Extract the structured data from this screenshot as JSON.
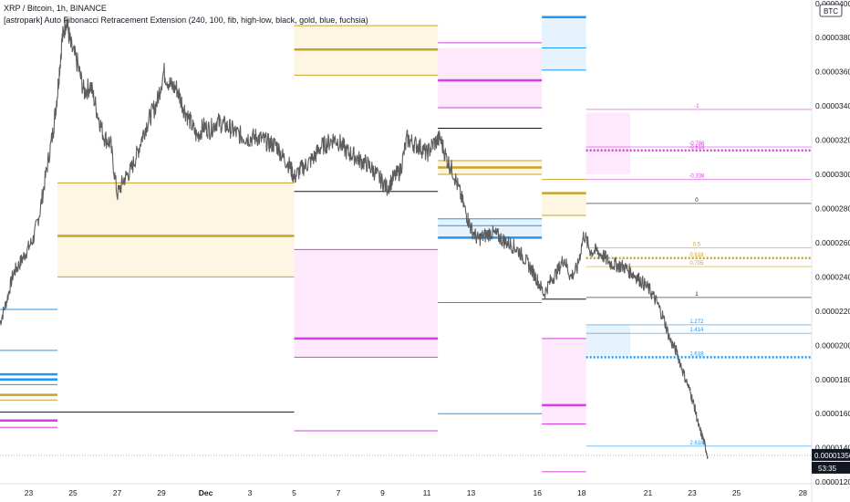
{
  "header": {
    "title": "XRP / Bitcoin, 1h, BINANCE",
    "indicator": "[astropark] Auto Fibonacci Retracement Extension (240, 100, fib, high-low, black, gold, blue, fuchsia)"
  },
  "colors": {
    "price": "#5d5d5d",
    "black": "#131722",
    "gold": "#c9a227",
    "blue": "#2196f3",
    "fuchsia": "#d63fe0",
    "gold_fill": "#fdf6e3",
    "blue_fill": "#e6f3fd",
    "fuchsia_fill": "#fde9fb"
  },
  "chart_data": {
    "type": "line",
    "symbol": "XRP / Bitcoin",
    "interval": "1h",
    "exchange": "BINANCE",
    "currency_badge": "BTC",
    "ylim": [
      1.19e-05,
      4.02e-05
    ],
    "y_ticks": [
      {
        "value": 1.2e-05,
        "label": "0.00001200"
      },
      {
        "value": 1.4e-05,
        "label": "0.00001400"
      },
      {
        "value": 1.6e-05,
        "label": "0.00001600"
      },
      {
        "value": 1.8e-05,
        "label": "0.00001800"
      },
      {
        "value": 2e-05,
        "label": "0.00002000"
      },
      {
        "value": 2.2e-05,
        "label": "0.00002200"
      },
      {
        "value": 2.4e-05,
        "label": "0.00002400"
      },
      {
        "value": 2.6e-05,
        "label": "0.00002600"
      },
      {
        "value": 2.8e-05,
        "label": "0.00002800"
      },
      {
        "value": 3e-05,
        "label": "0.00003000"
      },
      {
        "value": 3.2e-05,
        "label": "0.00003200"
      },
      {
        "value": 3.4e-05,
        "label": "0.00003400"
      },
      {
        "value": 3.6e-05,
        "label": "0.00003600"
      },
      {
        "value": 3.8e-05,
        "label": "0.00003800"
      },
      {
        "value": 4e-05,
        "label": "0.00004000"
      }
    ],
    "x_ticks": [
      {
        "day": 23,
        "label": "23"
      },
      {
        "day": 25,
        "label": "25"
      },
      {
        "day": 27,
        "label": "27"
      },
      {
        "day": 29,
        "label": "29"
      },
      {
        "day": 31,
        "label": "Dec",
        "bold": true
      },
      {
        "day": 33,
        "label": "3"
      },
      {
        "day": 35,
        "label": "5"
      },
      {
        "day": 37,
        "label": "7"
      },
      {
        "day": 39,
        "label": "9"
      },
      {
        "day": 41,
        "label": "11"
      },
      {
        "day": 43,
        "label": "13"
      },
      {
        "day": 46,
        "label": "16"
      },
      {
        "day": 48,
        "label": "18"
      },
      {
        "day": 51,
        "label": "21"
      },
      {
        "day": 53,
        "label": "23"
      },
      {
        "day": 55,
        "label": "25"
      },
      {
        "day": 58,
        "label": "28"
      }
    ],
    "xlim": [
      21.7,
      58.4
    ],
    "price_series": {
      "name": "XRP / Bitcoin",
      "x": [
        21.7,
        22.0,
        22.3,
        22.6,
        22.9,
        23.2,
        23.5,
        23.8,
        24.1,
        24.3,
        24.5,
        24.7,
        24.9,
        25.2,
        25.5,
        25.8,
        26.1,
        26.4,
        26.7,
        27.0,
        27.3,
        27.6,
        27.9,
        28.2,
        28.5,
        28.8,
        29.1,
        29.4,
        29.7,
        30.0,
        30.3,
        30.6,
        30.9,
        31.2,
        31.5,
        31.8,
        32.1,
        32.4,
        32.7,
        33.0,
        33.3,
        33.6,
        33.9,
        34.2,
        34.5,
        34.8,
        35.0,
        35.3,
        35.6,
        35.9,
        36.2,
        36.5,
        36.8,
        37.1,
        37.4,
        37.7,
        38.0,
        38.3,
        38.6,
        38.9,
        39.2,
        39.5,
        39.8,
        40.1,
        40.4,
        40.7,
        41.0,
        41.3,
        41.6,
        41.9,
        42.2,
        42.5,
        42.8,
        43.0,
        43.3,
        43.6,
        43.9,
        44.2,
        44.5,
        44.8,
        45.1,
        45.4,
        45.7,
        46.0,
        46.3,
        46.6,
        46.9,
        47.2,
        47.5,
        47.8,
        48.1,
        48.4,
        48.7,
        49.0,
        49.3,
        49.6,
        49.9,
        50.2,
        50.5,
        50.8,
        51.1,
        51.4,
        51.7,
        52.0,
        52.3,
        52.6,
        52.9,
        53.1,
        53.3,
        53.5,
        53.7
      ],
      "y": [
        2.13e-05,
        2.26e-05,
        2.42e-05,
        2.48e-05,
        2.55e-05,
        2.62e-05,
        2.78e-05,
        3.02e-05,
        3.25e-05,
        3.48e-05,
        3.78e-05,
        3.91e-05,
        3.75e-05,
        3.65e-05,
        3.48e-05,
        3.52e-05,
        3.36e-05,
        3.22e-05,
        3.18e-05,
        2.88e-05,
        2.97e-05,
        3.02e-05,
        3.12e-05,
        3.25e-05,
        3.34e-05,
        3.42e-05,
        3.6e-05,
        3.52e-05,
        3.5e-05,
        3.39e-05,
        3.31e-05,
        3.22e-05,
        3.28e-05,
        3.26e-05,
        3.31e-05,
        3.29e-05,
        3.27e-05,
        3.24e-05,
        3.22e-05,
        3.21e-05,
        3.22e-05,
        3.2e-05,
        3.18e-05,
        3.17e-05,
        3.1e-05,
        3.05e-05,
        2.98e-05,
        3.03e-05,
        3.06e-05,
        3.1e-05,
        3.16e-05,
        3.18e-05,
        3.21e-05,
        3.18e-05,
        3.13e-05,
        3.11e-05,
        3.08e-05,
        3.06e-05,
        3.02e-05,
        2.97e-05,
        2.92e-05,
        2.98e-05,
        3.02e-05,
        3.21e-05,
        3.18e-05,
        3.16e-05,
        3.12e-05,
        3.18e-05,
        3.21e-05,
        3.09e-05,
        3.01e-05,
        2.89e-05,
        2.76e-05,
        2.68e-05,
        2.62e-05,
        2.64e-05,
        2.66e-05,
        2.64e-05,
        2.61e-05,
        2.59e-05,
        2.56e-05,
        2.51e-05,
        2.45e-05,
        2.38e-05,
        2.3e-05,
        2.38e-05,
        2.43e-05,
        2.51e-05,
        2.4e-05,
        2.45e-05,
        2.65e-05,
        2.55e-05,
        2.55e-05,
        2.52e-05,
        2.48e-05,
        2.47e-05,
        2.46e-05,
        2.43e-05,
        2.4e-05,
        2.36e-05,
        2.32e-05,
        2.25e-05,
        2.16e-05,
        2.03e-05,
        1.96e-05,
        1.84e-05,
        1.73e-05,
        1.64e-05,
        1.52e-05,
        1.45e-05,
        1.35e-05
      ]
    },
    "fib_blocks": [
      {
        "x0": 21.7,
        "x1": 24.3,
        "fill": "blue",
        "lines": [
          {
            "v": 2.21e-05,
            "c": "blue",
            "w": 1
          },
          {
            "v": 1.97e-05,
            "c": "blue",
            "w": 1
          },
          {
            "v": 1.83e-05,
            "c": "blue",
            "w": 2.5
          },
          {
            "v": 1.8e-05,
            "c": "blue",
            "w": 2.5
          },
          {
            "v": 1.77e-05,
            "c": "blue",
            "w": 1
          },
          {
            "v": 1.71e-05,
            "c": "gold",
            "w": 2.5
          },
          {
            "v": 1.68e-05,
            "c": "gold",
            "w": 1
          },
          {
            "v": 1.56e-05,
            "c": "fuchsia",
            "w": 2.5
          },
          {
            "v": 1.52e-05,
            "c": "fuchsia",
            "w": 1
          }
        ],
        "fills": []
      },
      {
        "x0": 21.7,
        "x1": 35.0,
        "lines": [
          {
            "v": 1.61e-05,
            "c": "black",
            "w": 1
          }
        ],
        "fills": []
      },
      {
        "x0": 24.3,
        "x1": 35.0,
        "lines": [
          {
            "v": 2.95e-05,
            "c": "gold",
            "w": 1
          },
          {
            "v": 2.64e-05,
            "c": "gold",
            "w": 2.5
          },
          {
            "v": 2.4e-05,
            "c": "gold",
            "w": 1
          }
        ],
        "fills": [
          {
            "v0": 2.95e-05,
            "v1": 2.4e-05,
            "c": "gold"
          }
        ]
      },
      {
        "x0": 35.0,
        "x1": 41.5,
        "lines": [
          {
            "v": 3.87e-05,
            "c": "gold",
            "w": 1
          },
          {
            "v": 3.73e-05,
            "c": "gold",
            "w": 2.5
          },
          {
            "v": 3.58e-05,
            "c": "gold",
            "w": 1
          },
          {
            "v": 2.9e-05,
            "c": "black",
            "w": 1
          },
          {
            "v": 2.56e-05,
            "c": "fuchsia",
            "w": 1
          },
          {
            "v": 2.04e-05,
            "c": "fuchsia",
            "w": 2.5
          },
          {
            "v": 1.93e-05,
            "c": "fuchsia",
            "w": 1
          },
          {
            "v": 1.5e-05,
            "c": "fuchsia",
            "w": 1
          }
        ],
        "fills": [
          {
            "v0": 3.87e-05,
            "v1": 3.58e-05,
            "c": "gold"
          },
          {
            "v0": 2.56e-05,
            "v1": 1.93e-05,
            "c": "fuchsia"
          }
        ]
      },
      {
        "x0": 41.5,
        "x1": 46.2,
        "lines": [
          {
            "v": 3.77e-05,
            "c": "fuchsia",
            "w": 1
          },
          {
            "v": 3.55e-05,
            "c": "fuchsia",
            "w": 2.5
          },
          {
            "v": 3.39e-05,
            "c": "fuchsia",
            "w": 1
          },
          {
            "v": 3.27e-05,
            "c": "black",
            "w": 1
          },
          {
            "v": 3.08e-05,
            "c": "gold",
            "w": 1
          },
          {
            "v": 3.04e-05,
            "c": "gold",
            "w": 2.5
          },
          {
            "v": 3e-05,
            "c": "gold",
            "w": 1
          },
          {
            "v": 2.74e-05,
            "c": "blue",
            "w": 1
          },
          {
            "v": 2.7e-05,
            "c": "blue",
            "w": 1
          },
          {
            "v": 2.63e-05,
            "c": "blue",
            "w": 2.5
          },
          {
            "v": 2.25e-05,
            "c": "blue",
            "w": 1
          },
          {
            "v": 1.6e-05,
            "c": "blue",
            "w": 1
          }
        ],
        "fills": [
          {
            "v0": 3.74e-05,
            "v1": 3.39e-05,
            "c": "fuchsia"
          },
          {
            "v0": 3.08e-05,
            "v1": 3e-05,
            "c": "gold"
          },
          {
            "v0": 2.74e-05,
            "v1": 2.63e-05,
            "c": "blue"
          }
        ]
      },
      {
        "x0": 46.2,
        "x1": 48.2,
        "lines": [
          {
            "v": 3.92e-05,
            "c": "blue",
            "w": 2.5
          },
          {
            "v": 3.74e-05,
            "c": "blue",
            "w": 1
          },
          {
            "v": 3.61e-05,
            "c": "blue",
            "w": 1
          },
          {
            "v": 2.97e-05,
            "c": "gold",
            "w": 1
          },
          {
            "v": 2.89e-05,
            "c": "gold",
            "w": 2.5
          },
          {
            "v": 2.76e-05,
            "c": "gold",
            "w": 1
          },
          {
            "v": 2.27e-05,
            "c": "black",
            "w": 1
          },
          {
            "v": 2.04e-05,
            "c": "fuchsia",
            "w": 1
          },
          {
            "v": 1.65e-05,
            "c": "fuchsia",
            "w": 2.5
          },
          {
            "v": 1.54e-05,
            "c": "fuchsia",
            "w": 1
          },
          {
            "v": 1.26e-05,
            "c": "fuchsia",
            "w": 1
          }
        ],
        "fills": [
          {
            "v0": 3.92e-05,
            "v1": 3.61e-05,
            "c": "blue"
          },
          {
            "v0": 2.89e-05,
            "v1": 2.76e-05,
            "c": "gold"
          },
          {
            "v0": 2.04e-05,
            "v1": 1.54e-05,
            "c": "fuchsia"
          }
        ]
      },
      {
        "x0": 48.2,
        "x1": 50.2,
        "lines": [],
        "fills": [
          {
            "v0": 3.36e-05,
            "v1": 3e-05,
            "c": "fuchsia"
          },
          {
            "v0": 2.12e-05,
            "v1": 1.94e-05,
            "c": "blue"
          }
        ]
      }
    ],
    "current_levels": {
      "x0": 48.2,
      "x1": 58.4,
      "label_x": 53.2,
      "levels": [
        {
          "v": 3.38e-05,
          "c": "fuchsia",
          "w": 1,
          "dash": false,
          "label": "-1"
        },
        {
          "v": 3.16e-05,
          "c": "fuchsia",
          "w": 1,
          "dash": false,
          "label": "-0.786"
        },
        {
          "v": 3.14e-05,
          "c": "fuchsia",
          "w": 2.5,
          "dash": true,
          "label": "-0.618"
        },
        {
          "v": 2.97e-05,
          "c": "fuchsia",
          "w": 1,
          "dash": false,
          "label": "-0.338"
        },
        {
          "v": 2.83e-05,
          "c": "black",
          "w": 1,
          "dash": false,
          "label": "0"
        },
        {
          "v": 2.57e-05,
          "c": "gold",
          "w": 1,
          "dash": false,
          "label": "0.5"
        },
        {
          "v": 2.51e-05,
          "c": "gold",
          "w": 2.5,
          "dash": true,
          "label": "0.618"
        },
        {
          "v": 2.46e-05,
          "c": "gold",
          "w": 1,
          "dash": false,
          "label": "0.705"
        },
        {
          "v": 2.28e-05,
          "c": "black",
          "w": 1,
          "dash": false,
          "label": "1"
        },
        {
          "v": 2.12e-05,
          "c": "blue",
          "w": 1,
          "dash": false,
          "label": "1.272"
        },
        {
          "v": 2.07e-05,
          "c": "blue",
          "w": 1,
          "dash": false,
          "label": "1.414"
        },
        {
          "v": 1.93e-05,
          "c": "blue",
          "w": 2.5,
          "dash": true,
          "label": "1.618"
        },
        {
          "v": 1.41e-05,
          "c": "blue",
          "w": 1,
          "dash": false,
          "label": "2.618"
        }
      ]
    },
    "last_price": {
      "value": 1.356e-05,
      "label": "0.00001356"
    },
    "countdown": "53:35",
    "grid": false,
    "legend": "top-left"
  }
}
